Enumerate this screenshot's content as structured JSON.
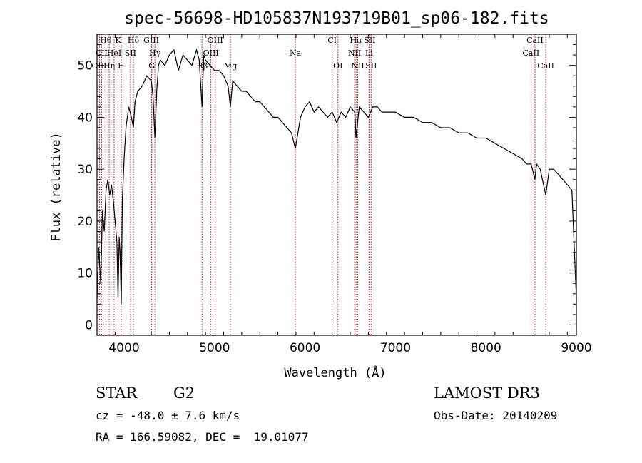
{
  "chart_data": {
    "type": "line",
    "title": "spec-56698-HD105837N193719B01_sp06-182.fits",
    "xlabel": "Wavelength (Å)",
    "ylabel": "Flux (relative)",
    "xlim": [
      3700,
      9000
    ],
    "ylim": [
      -2,
      56
    ],
    "x_ticks": [
      4000,
      5000,
      6000,
      7000,
      8000,
      9000
    ],
    "y_ticks": [
      0,
      10,
      20,
      30,
      40,
      50
    ],
    "grid": false,
    "series": [
      {
        "x": [
          3700,
          3720,
          3740,
          3760,
          3780,
          3800,
          3820,
          3840,
          3860,
          3880,
          3900,
          3920,
          3933,
          3945,
          3955,
          3968,
          3980,
          4000,
          4020,
          4050,
          4080,
          4102,
          4120,
          4150,
          4200,
          4250,
          4300,
          4320,
          4340,
          4360,
          4380,
          4400,
          4450,
          4500,
          4550,
          4600,
          4650,
          4700,
          4750,
          4800,
          4830,
          4861,
          4880,
          4900,
          4950,
          5000,
          5050,
          5100,
          5150,
          5175,
          5200,
          5250,
          5300,
          5350,
          5400,
          5450,
          5500,
          5550,
          5600,
          5650,
          5700,
          5750,
          5800,
          5850,
          5893,
          5950,
          6000,
          6050,
          6100,
          6150,
          6200,
          6250,
          6300,
          6350,
          6400,
          6450,
          6500,
          6550,
          6563,
          6600,
          6650,
          6700,
          6750,
          6800,
          6850,
          6900,
          6950,
          7000,
          7100,
          7200,
          7300,
          7400,
          7500,
          7600,
          7700,
          7800,
          7900,
          8000,
          8100,
          8200,
          8300,
          8400,
          8450,
          8500,
          8542,
          8560,
          8600,
          8662,
          8700,
          8750,
          8800,
          8850,
          8900,
          8950,
          9000
        ],
        "values": [
          5,
          15,
          8,
          22,
          18,
          26,
          28,
          25,
          27,
          24,
          20,
          16,
          5,
          17,
          14,
          4,
          24,
          32,
          38,
          42,
          40,
          38,
          43,
          45,
          46,
          48,
          47,
          44,
          36,
          45,
          50,
          51,
          50,
          52,
          53,
          49,
          52,
          51,
          50,
          53,
          51,
          42,
          52,
          51,
          50,
          49,
          49,
          48,
          46,
          42,
          47,
          46,
          45,
          45,
          44,
          43,
          43,
          42,
          41,
          40,
          40,
          39,
          38,
          37,
          34,
          40,
          42,
          43,
          41,
          42,
          41,
          40,
          41,
          39,
          41,
          40,
          42,
          41,
          36,
          42,
          41,
          40,
          42,
          42,
          41,
          41,
          41,
          41,
          40,
          40,
          39,
          39,
          38,
          38,
          37,
          37,
          36,
          36,
          35,
          34,
          33,
          32,
          31,
          31,
          28,
          31,
          30,
          25,
          30,
          30,
          29,
          28,
          27,
          26,
          5
        ]
      }
    ],
    "lines": [
      {
        "label": "Hθ",
        "x": 3797,
        "row": 1
      },
      {
        "label": "CII",
        "x": 3750,
        "row": 2
      },
      {
        "label": "OIII",
        "x": 3727,
        "row": 3
      },
      {
        "label": "Hη",
        "x": 3835,
        "row": 3
      },
      {
        "label": "HeI",
        "x": 3889,
        "row": 2
      },
      {
        "label": "K",
        "x": 3933,
        "row": 1
      },
      {
        "label": "H",
        "x": 3968,
        "row": 3
      },
      {
        "label": "SII",
        "x": 4070,
        "row": 2
      },
      {
        "label": "Hδ",
        "x": 4102,
        "row": 1
      },
      {
        "label": "GIII",
        "x": 4300,
        "row": 1
      },
      {
        "label": "Hγ",
        "x": 4340,
        "row": 2
      },
      {
        "label": "G",
        "x": 4305,
        "row": 3
      },
      {
        "label": "Hβ",
        "x": 4861,
        "row": 3
      },
      {
        "label": "OIII",
        "x": 4959,
        "row": 2
      },
      {
        "label": "OIII",
        "x": 5007,
        "row": 1
      },
      {
        "label": "Mg",
        "x": 5175,
        "row": 3
      },
      {
        "label": "Na",
        "x": 5893,
        "row": 2
      },
      {
        "label": "CI",
        "x": 6300,
        "row": 1
      },
      {
        "label": "OI",
        "x": 6364,
        "row": 3
      },
      {
        "label": "NII",
        "x": 6548,
        "row": 2
      },
      {
        "label": "Hα",
        "x": 6563,
        "row": 1
      },
      {
        "label": "NII",
        "x": 6583,
        "row": 3
      },
      {
        "label": "SII",
        "x": 6716,
        "row": 1
      },
      {
        "label": "Li",
        "x": 6708,
        "row": 2
      },
      {
        "label": "SII",
        "x": 6731,
        "row": 3
      },
      {
        "label": "CaII",
        "x": 8498,
        "row": 2
      },
      {
        "label": "CaII",
        "x": 8542,
        "row": 1
      },
      {
        "label": "CaII",
        "x": 8662,
        "row": 3
      }
    ],
    "line_color": "#b22222"
  },
  "info": {
    "class_label": "STAR",
    "subclass_label": "G2",
    "cz_text": "cz = -48.0 ± 7.6 km/s",
    "radec_text": "RA = 166.59082, DEC =  19.01077",
    "survey_label": "LAMOST DR3",
    "obs_date_text": "Obs-Date: 20140209"
  }
}
